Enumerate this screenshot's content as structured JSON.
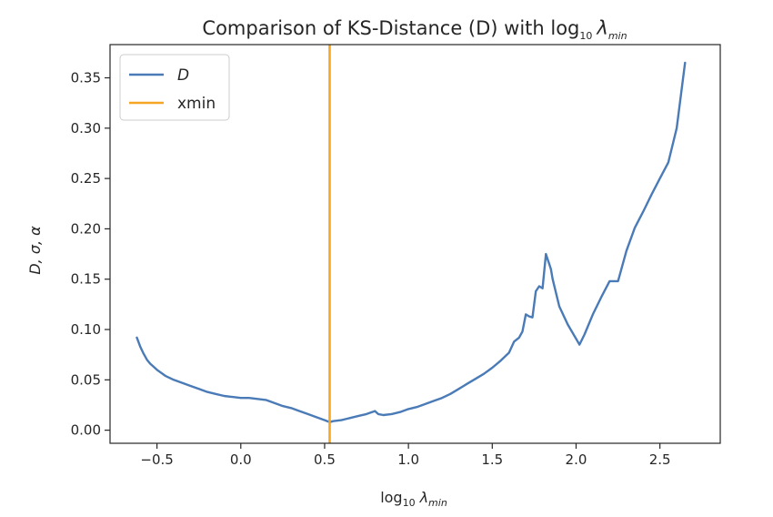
{
  "chart_data": {
    "type": "line",
    "title": {
      "text": "Comparison of KS-Distance (D) with log",
      "sub": "10",
      "math": "λ",
      "math_sub": "min"
    },
    "xlabel": {
      "text": "log",
      "sub": "10",
      "math": "λ",
      "math_sub": "min"
    },
    "ylabel": "D, σ, α",
    "xlim": [
      -0.78,
      2.86
    ],
    "ylim": [
      -0.013,
      0.383
    ],
    "xticks": [
      -0.5,
      0.0,
      0.5,
      1.0,
      1.5,
      2.0,
      2.5
    ],
    "xtick_labels": [
      "−0.5",
      "0.0",
      "0.5",
      "1.0",
      "1.5",
      "2.0",
      "2.5"
    ],
    "yticks": [
      0.0,
      0.05,
      0.1,
      0.15,
      0.2,
      0.25,
      0.3,
      0.35
    ],
    "ytick_labels": [
      "0.00",
      "0.05",
      "0.10",
      "0.15",
      "0.20",
      "0.25",
      "0.30",
      "0.35"
    ],
    "grid": false,
    "legend_position": "upper left",
    "series": [
      {
        "name": "D",
        "color": "#4a7bb7",
        "x": [
          -0.62,
          -0.6,
          -0.58,
          -0.56,
          -0.54,
          -0.52,
          -0.5,
          -0.45,
          -0.4,
          -0.35,
          -0.3,
          -0.25,
          -0.2,
          -0.15,
          -0.1,
          -0.05,
          0.0,
          0.05,
          0.1,
          0.15,
          0.2,
          0.25,
          0.3,
          0.35,
          0.4,
          0.45,
          0.5,
          0.53,
          0.55,
          0.6,
          0.65,
          0.7,
          0.75,
          0.8,
          0.82,
          0.85,
          0.9,
          0.95,
          1.0,
          1.05,
          1.1,
          1.15,
          1.2,
          1.25,
          1.3,
          1.35,
          1.4,
          1.45,
          1.5,
          1.55,
          1.6,
          1.63,
          1.66,
          1.68,
          1.7,
          1.72,
          1.74,
          1.76,
          1.78,
          1.8,
          1.82,
          1.83,
          1.84,
          1.85,
          1.86,
          1.9,
          1.95,
          2.02,
          2.05,
          2.1,
          2.15,
          2.2,
          2.25,
          2.3,
          2.35,
          2.4,
          2.45,
          2.5,
          2.55,
          2.6,
          2.65
        ],
        "y": [
          0.092,
          0.083,
          0.076,
          0.07,
          0.066,
          0.063,
          0.06,
          0.054,
          0.05,
          0.047,
          0.044,
          0.041,
          0.038,
          0.036,
          0.034,
          0.033,
          0.032,
          0.032,
          0.031,
          0.03,
          0.027,
          0.024,
          0.022,
          0.019,
          0.016,
          0.013,
          0.01,
          0.008,
          0.009,
          0.01,
          0.012,
          0.014,
          0.016,
          0.019,
          0.016,
          0.015,
          0.016,
          0.018,
          0.021,
          0.023,
          0.026,
          0.029,
          0.032,
          0.036,
          0.041,
          0.046,
          0.051,
          0.056,
          0.062,
          0.069,
          0.077,
          0.088,
          0.092,
          0.098,
          0.115,
          0.113,
          0.112,
          0.138,
          0.143,
          0.141,
          0.175,
          0.17,
          0.165,
          0.16,
          0.15,
          0.123,
          0.105,
          0.085,
          0.095,
          0.115,
          0.132,
          0.148,
          0.148,
          0.178,
          0.201,
          0.217,
          0.234,
          0.25,
          0.266,
          0.3,
          0.365
        ]
      },
      {
        "name": "xmin",
        "color": "#f5a623",
        "type": "vline",
        "x": 0.53
      }
    ]
  }
}
